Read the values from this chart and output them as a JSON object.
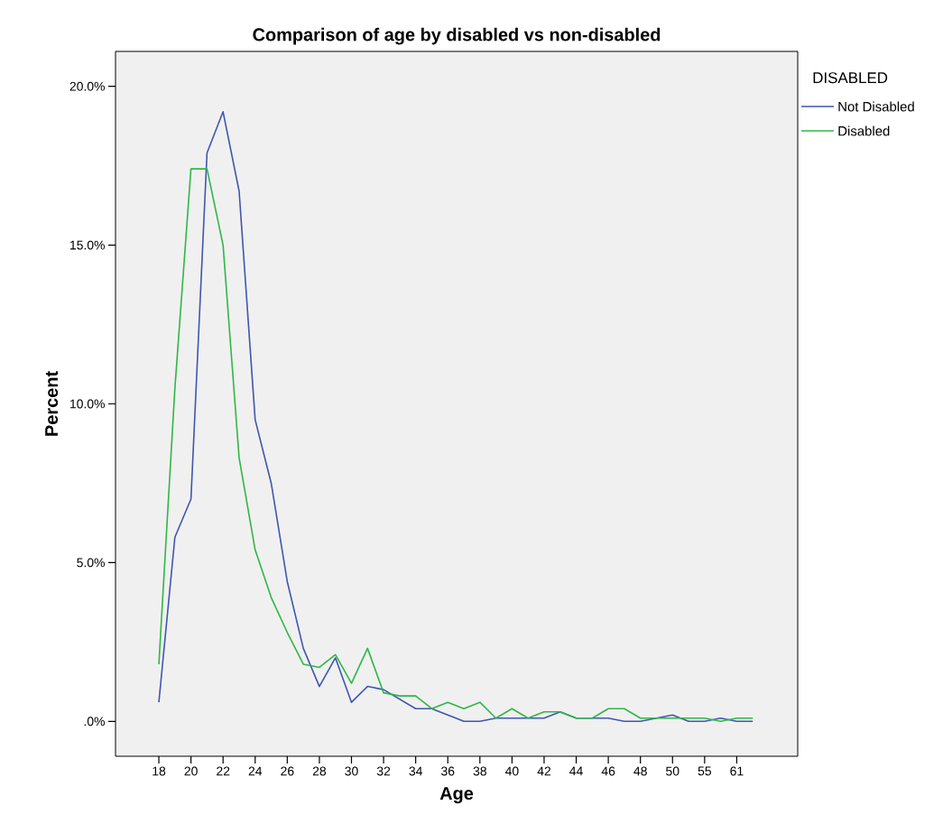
{
  "chart_data": {
    "type": "line",
    "title": "Comparison of age by disabled vs non-disabled",
    "xlabel": "Age",
    "ylabel": "Percent",
    "legend_title": "DISABLED",
    "categories": [
      "18",
      null,
      "20",
      null,
      "22",
      null,
      "24",
      null,
      "26",
      null,
      "28",
      null,
      "30",
      null,
      "32",
      null,
      "34",
      null,
      "36",
      null,
      "38",
      null,
      "40",
      null,
      "42",
      null,
      "44",
      null,
      "46",
      null,
      "48",
      null,
      "50",
      null,
      "55",
      null,
      "61",
      null
    ],
    "series": [
      {
        "name": "Not Disabled",
        "color": "#3f56b0",
        "values": [
          0.6,
          5.8,
          7.0,
          17.9,
          19.2,
          16.7,
          9.5,
          7.5,
          4.4,
          2.3,
          1.1,
          2.0,
          0.6,
          1.1,
          1.0,
          0.7,
          0.4,
          0.4,
          0.2,
          0,
          0,
          0.1,
          0.1,
          0.1,
          0.1,
          0.3,
          0.1,
          0.1,
          0.1,
          0,
          0,
          0.1,
          0.2,
          0,
          0,
          0.1,
          0,
          0
        ]
      },
      {
        "name": "Disabled",
        "color": "#2eb845",
        "values": [
          1.8,
          10.5,
          17.4,
          17.4,
          15.0,
          8.3,
          5.4,
          3.9,
          2.8,
          1.8,
          1.7,
          2.1,
          1.2,
          2.3,
          0.9,
          0.8,
          0.8,
          0.4,
          0.6,
          0.4,
          0.6,
          0.1,
          0.4,
          0.1,
          0.3,
          0.3,
          0.1,
          0.1,
          0.4,
          0.4,
          0.1,
          0.1,
          0.1,
          0.1,
          0.1,
          0,
          0.1,
          0.1
        ]
      }
    ],
    "ylim": [
      -1.1,
      21.1
    ],
    "yticks": [
      {
        "value": 0,
        "label": ".0%"
      },
      {
        "value": 5,
        "label": "5.0%"
      },
      {
        "value": 10,
        "label": "10.0%"
      },
      {
        "value": 15,
        "label": "15.0%"
      },
      {
        "value": 20,
        "label": "20.0%"
      }
    ],
    "grid": false,
    "legend": "top right",
    "marker": "none",
    "line_style": "solid"
  }
}
